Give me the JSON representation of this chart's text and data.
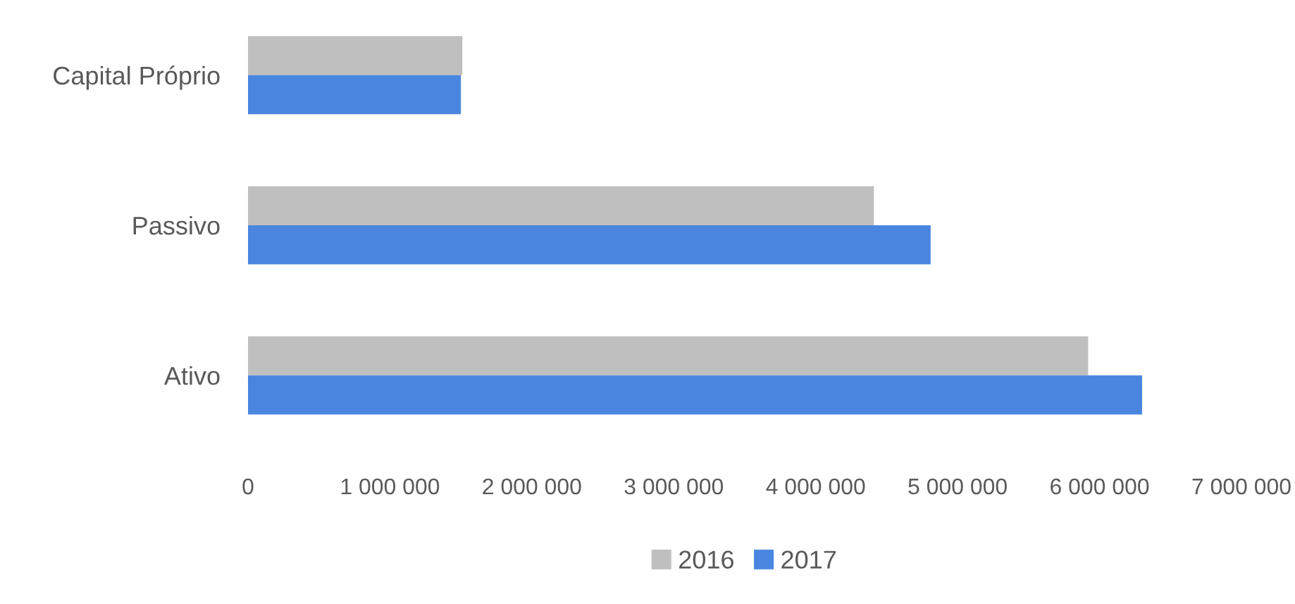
{
  "chart_data": {
    "type": "bar",
    "orientation": "horizontal",
    "categories": [
      "Capital Próprio",
      "Passivo",
      "Ativo"
    ],
    "series": [
      {
        "name": "2016",
        "color": "#bfbfbf",
        "values": [
          1510000,
          4410000,
          5920000
        ]
      },
      {
        "name": "2017",
        "color": "#4a86e0",
        "values": [
          1500000,
          4810000,
          6300000
        ]
      }
    ],
    "xlim": [
      0,
      7000000
    ],
    "xticks": [
      0,
      {
        "value": 1000000,
        "label": "1 000 000"
      },
      {
        "value": 2000000,
        "label": "2 000 000"
      },
      {
        "value": 3000000,
        "label": "3 000 000"
      },
      {
        "value": 4000000,
        "label": "4 000 000"
      },
      {
        "value": 5000000,
        "label": "5 000 000"
      },
      {
        "value": 6000000,
        "label": "6 000 000"
      },
      {
        "value": 7000000,
        "label": "7 000 000"
      }
    ],
    "grid": false,
    "legend": "bottom"
  }
}
